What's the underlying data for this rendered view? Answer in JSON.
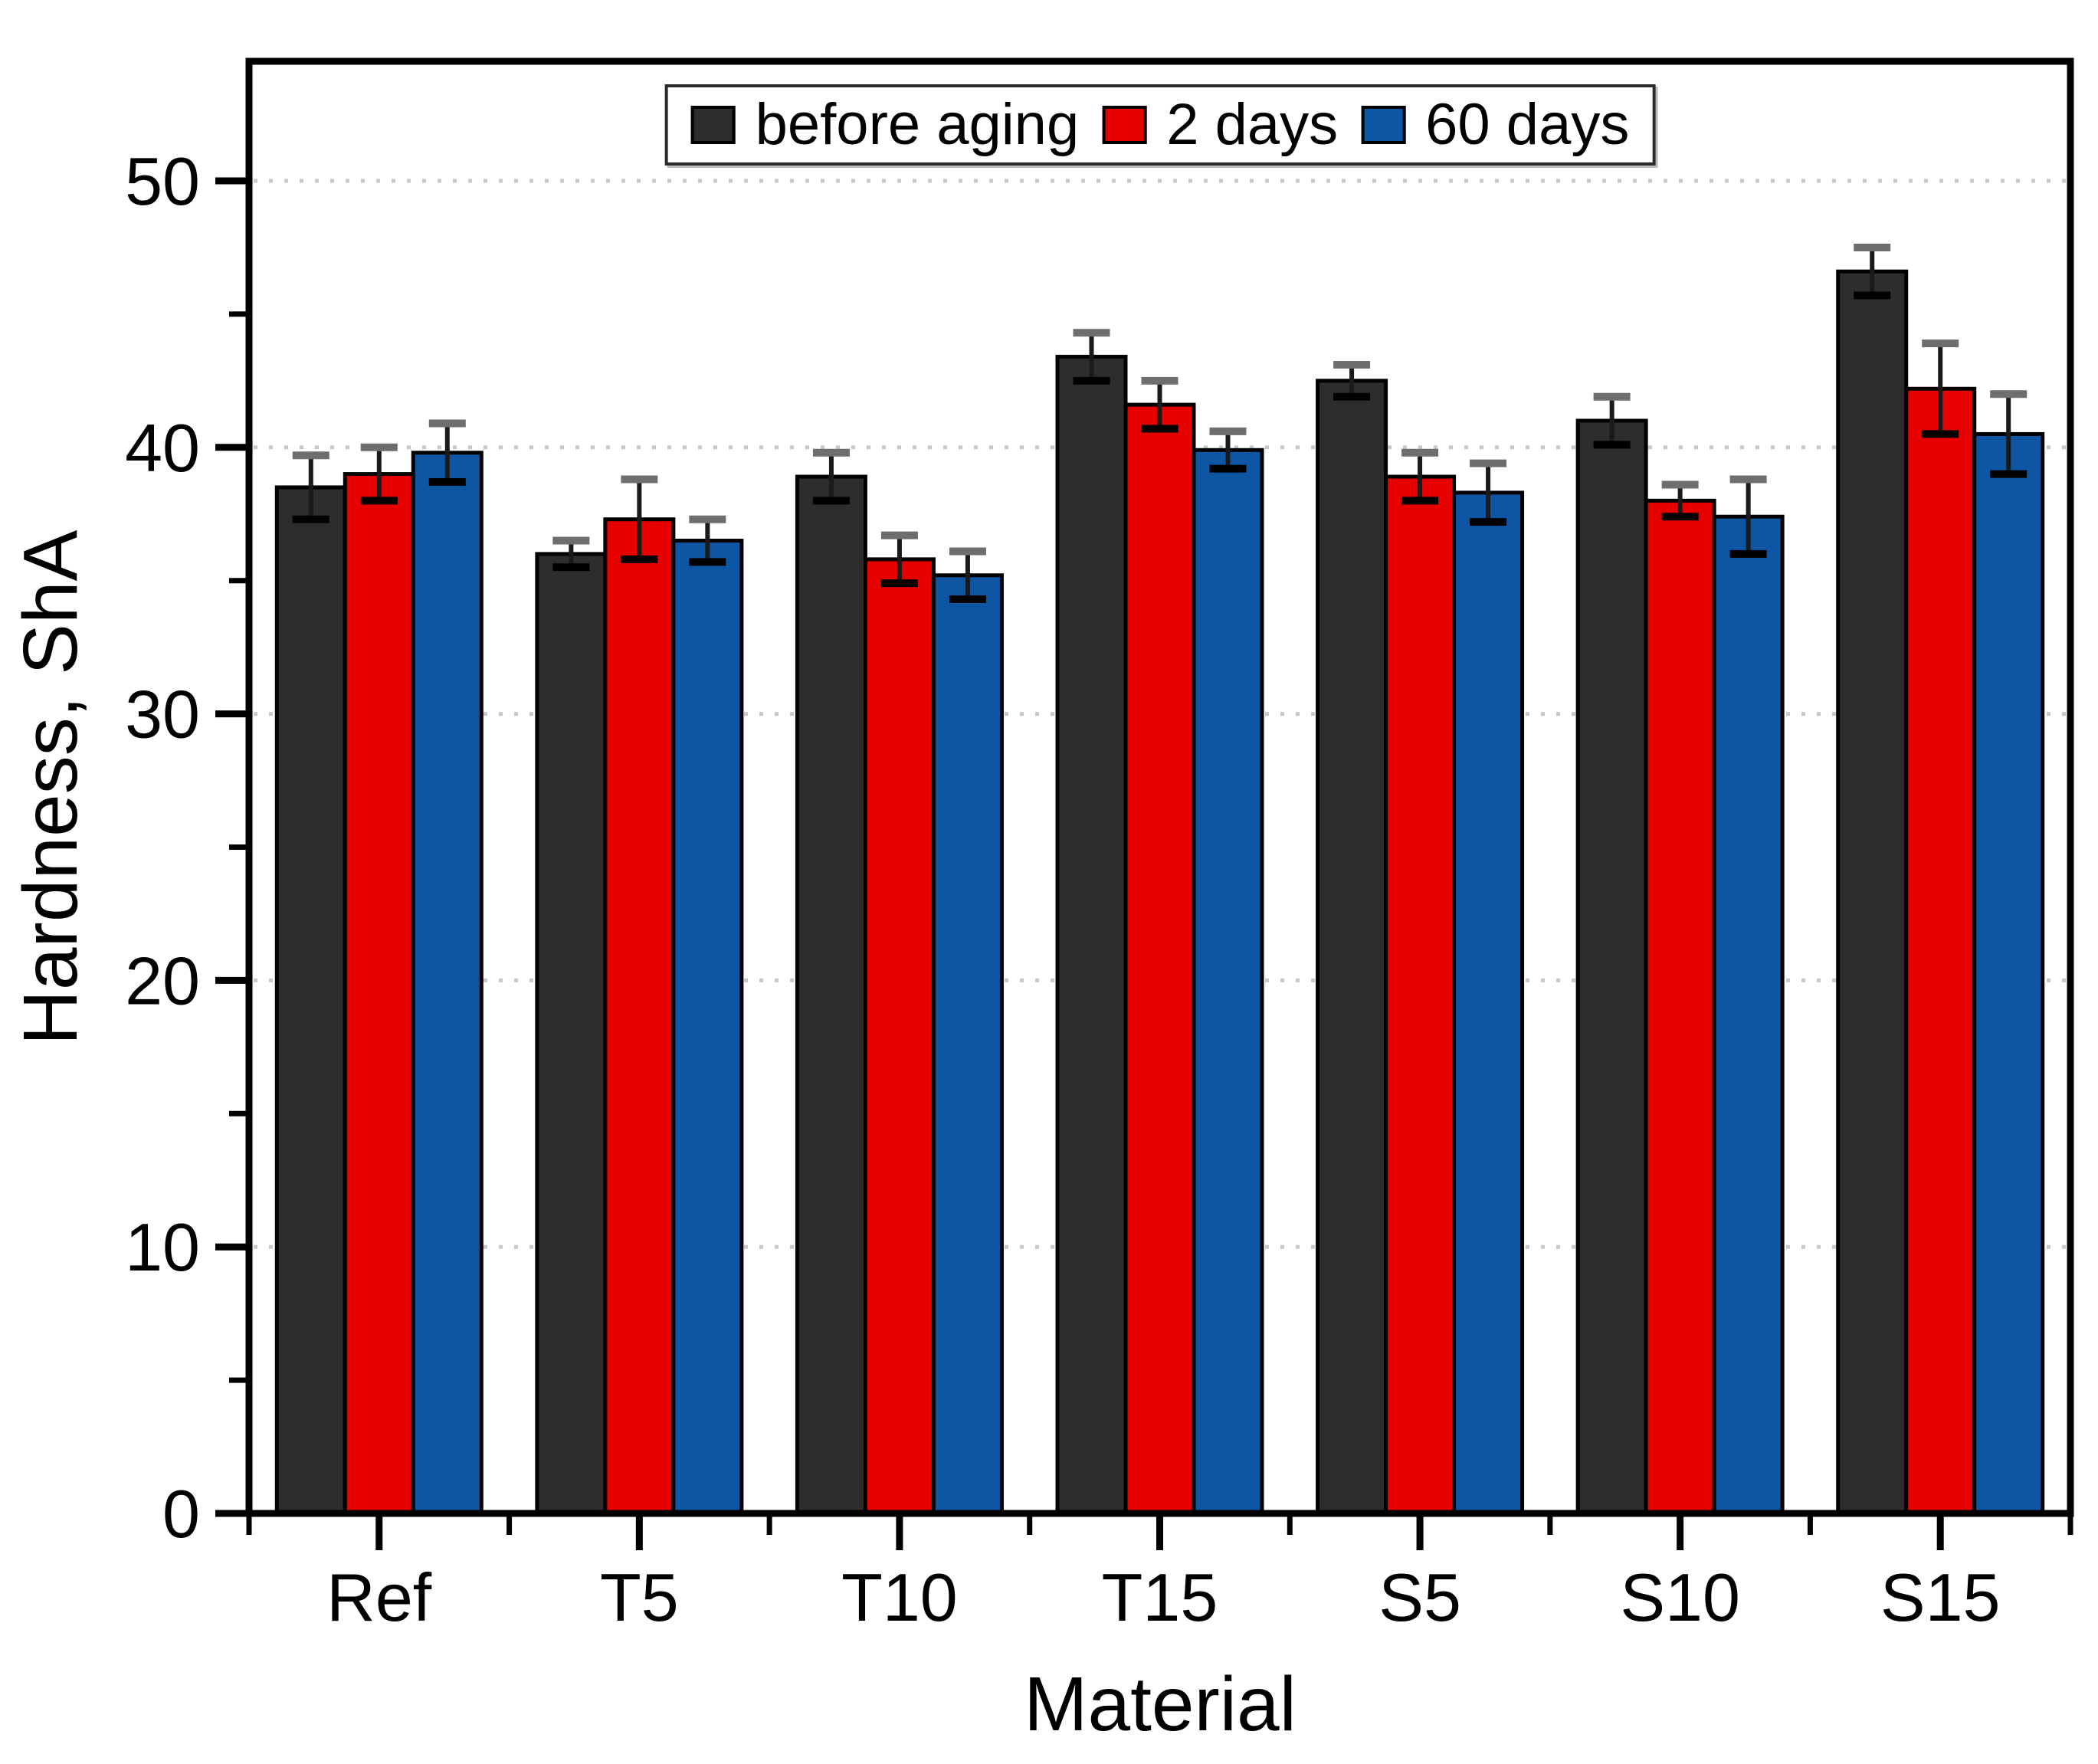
{
  "figure": {
    "background": "#ffffff",
    "plot_border_color": "#000000",
    "grid_color": "#c8c8c8"
  },
  "axes": {
    "ylabel": "Hardness, ShA",
    "xlabel": "Material",
    "yticks": [
      0,
      10,
      20,
      30,
      40,
      50
    ],
    "ytick_minor": [
      5,
      15,
      25,
      35,
      45
    ]
  },
  "legend": {
    "items": [
      {
        "label": "before aging",
        "color": "#2d2d2d"
      },
      {
        "label": "2 days",
        "color": "#e60000"
      },
      {
        "label": "60 days",
        "color": "#0e56a4"
      }
    ]
  },
  "chart_data": {
    "type": "bar",
    "title": "",
    "xlabel": "Material",
    "ylabel": "Hardness, ShA",
    "categories": [
      "Ref",
      "T5",
      "T10",
      "T15",
      "S5",
      "S10",
      "S15"
    ],
    "series": [
      {
        "name": "before aging",
        "color": "#2d2d2d",
        "values": [
          38.5,
          36.0,
          38.9,
          43.4,
          42.5,
          41.0,
          46.6
        ],
        "errors": [
          1.2,
          0.5,
          0.9,
          0.9,
          0.6,
          0.9,
          0.9
        ]
      },
      {
        "name": "2 days",
        "color": "#e60000",
        "values": [
          39.0,
          37.3,
          35.8,
          41.6,
          38.9,
          38.0,
          42.2
        ],
        "errors": [
          1.0,
          1.5,
          0.9,
          0.9,
          0.9,
          0.6,
          1.7
        ]
      },
      {
        "name": "60 days",
        "color": "#0e56a4",
        "values": [
          39.8,
          36.5,
          35.2,
          39.9,
          38.3,
          37.4,
          40.5
        ],
        "errors": [
          1.1,
          0.8,
          0.9,
          0.7,
          1.1,
          1.4,
          1.5
        ]
      }
    ],
    "ylim": [
      0,
      55
    ],
    "grid": {
      "axis": "y",
      "style": "dotted",
      "color": "#c8c8c8"
    },
    "legend_position": "top-center",
    "error_bars": true
  }
}
